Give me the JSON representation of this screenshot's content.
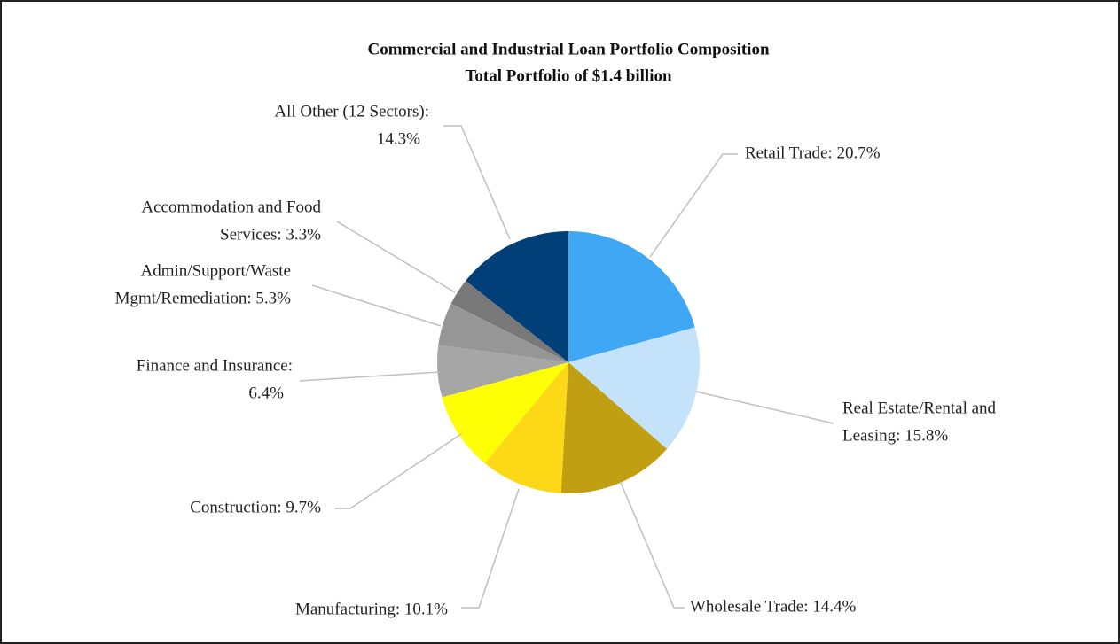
{
  "chart_data": {
    "type": "pie",
    "title": "Commercial and Industrial Loan Portfolio Composition",
    "subtitle": "Total Portfolio of $1.4 billion",
    "values": [
      20.7,
      15.8,
      14.4,
      10.1,
      9.7,
      6.4,
      5.3,
      3.3,
      14.3
    ],
    "value_labels": [
      [
        "Retail Trade: 20.7%"
      ],
      [
        "Real Estate/Rental and",
        "Leasing: 15.8%"
      ],
      [
        "Wholesale Trade: 14.4%"
      ],
      [
        "Manufacturing: 10.1%"
      ],
      [
        "Construction: 9.7%"
      ],
      [
        "Finance and Insurance:",
        "6.4%"
      ],
      [
        "Admin/Support/Waste",
        "Mgmt/Remediation: 5.3%"
      ],
      [
        "Accommodation and Food",
        "Services: 3.3%"
      ],
      [
        "All Other (12 Sectors):",
        "14.3%"
      ]
    ],
    "colors": [
      "#3fa7f4",
      "#c4e2fa",
      "#c0a012",
      "#fcd816",
      "#fefe04",
      "#a6a6a6",
      "#969696",
      "#787878",
      "#013f79"
    ]
  }
}
